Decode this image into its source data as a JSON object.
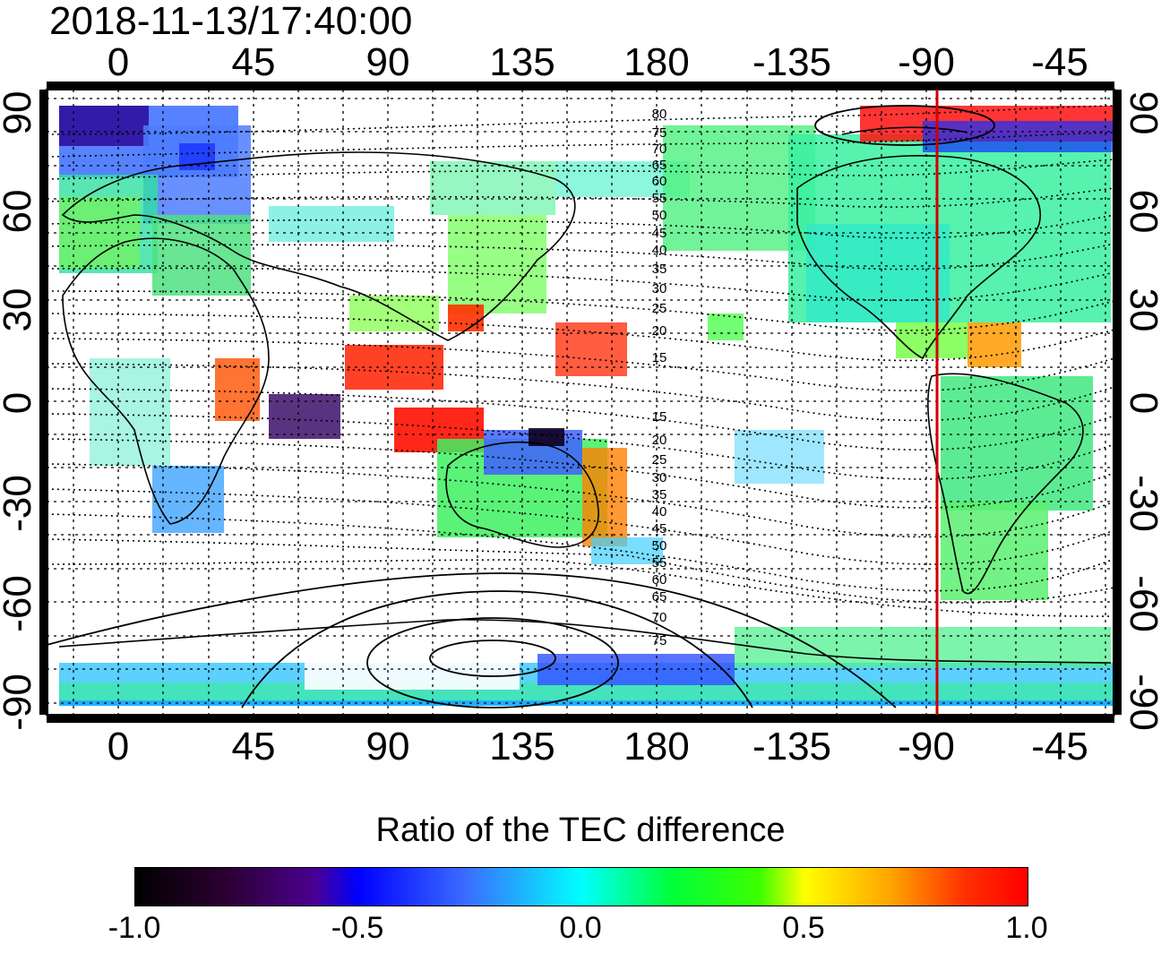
{
  "timestamp": "2018-11-13/17:40:00",
  "map": {
    "lon_ticks": [
      "0",
      "45",
      "90",
      "135",
      "180",
      "-135",
      "-90",
      "-45"
    ],
    "lat_ticks": [
      "90",
      "60",
      "30",
      "0",
      "-30",
      "-60",
      "-90"
    ],
    "contour_labels": [
      "80",
      "75",
      "70",
      "65",
      "60",
      "55",
      "50",
      "45",
      "40",
      "35",
      "30",
      "25",
      "20",
      "15",
      "15",
      "20",
      "25",
      "30",
      "35",
      "40",
      "45",
      "50",
      "55",
      "60",
      "65",
      "70",
      "75"
    ],
    "marker_longitude": -90,
    "marker_color": "#d00000"
  },
  "colorbar": {
    "title": "Ratio of the TEC difference",
    "ticks": [
      "-1.0",
      "-0.5",
      "0.0",
      "0.5",
      "1.0"
    ],
    "range": [
      -1.0,
      1.0
    ]
  }
}
